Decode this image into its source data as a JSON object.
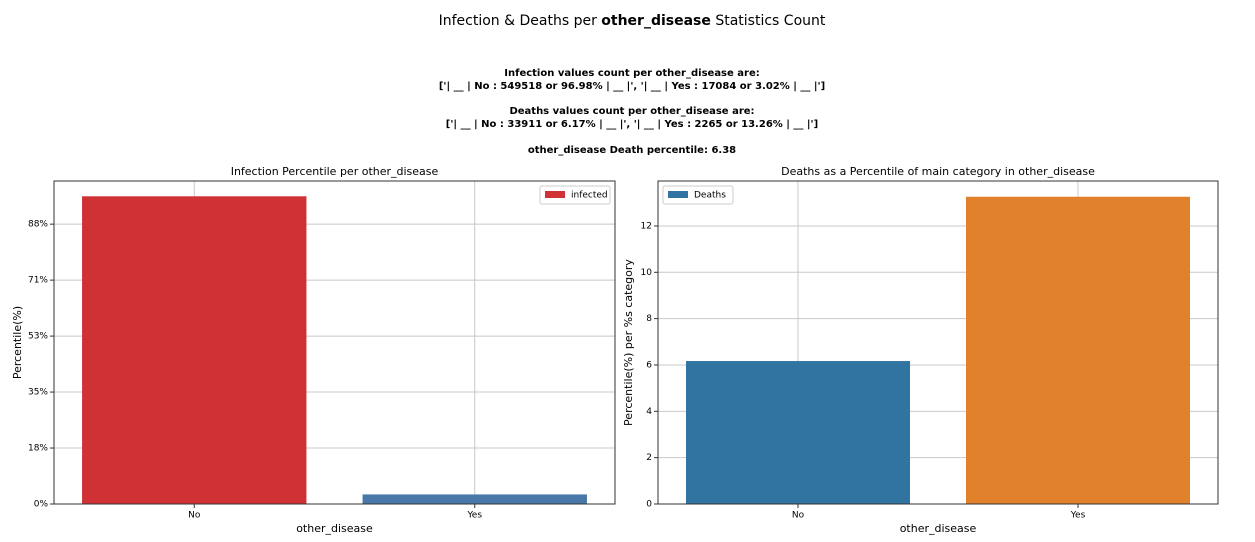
{
  "title_parts": [
    "Infection & Deaths per ",
    "other_disease",
    " Statistics Count"
  ],
  "notes": [
    "Infection values count per other_disease are:",
    "['| __ | No : 549518 or 96.98% | __ |', '| __ | Yes : 17084 or 3.02% | __ |']",
    "Deaths values count per other_disease are:",
    "['| __ | No : 33911 or 6.17% | __ |', '| __ | Yes : 2265 or 13.26% | __ |']",
    "other_disease Death percentile: 6.38"
  ],
  "chart_data": [
    {
      "type": "bar",
      "title": "Infection Percentile per other_disease",
      "xlabel": "other_disease",
      "ylabel": "Percentile(%)",
      "categories": [
        "No",
        "Yes"
      ],
      "series": [
        {
          "name": "infected",
          "color": "#d03135",
          "values": [
            96.98,
            3.02
          ]
        }
      ],
      "bar_colors": [
        "#d03135",
        "#4878a8"
      ],
      "ylim": [
        0,
        101.8
      ],
      "yticks": [
        {
          "value": 0,
          "label": "0%"
        },
        {
          "value": 17.64,
          "label": "18%"
        },
        {
          "value": 35.28,
          "label": "35%"
        },
        {
          "value": 52.92,
          "label": "53%"
        },
        {
          "value": 70.56,
          "label": "71%"
        },
        {
          "value": 88.2,
          "label": "88%"
        }
      ],
      "grid": true,
      "legend": "upper right"
    },
    {
      "type": "bar",
      "title": "Deaths as a Percentile of main category in other_disease",
      "xlabel": "other_disease",
      "ylabel": "Percentile(%) per %s category",
      "categories": [
        "No",
        "Yes"
      ],
      "series": [
        {
          "name": "Deaths",
          "color": "#3274a1",
          "values": [
            6.17,
            13.26
          ]
        }
      ],
      "bar_colors": [
        "#3274a1",
        "#e1812c"
      ],
      "ylim": [
        0,
        13.94
      ],
      "yticks": [
        0,
        2,
        4,
        6,
        8,
        10,
        12
      ],
      "grid": true,
      "legend": "upper left"
    }
  ]
}
